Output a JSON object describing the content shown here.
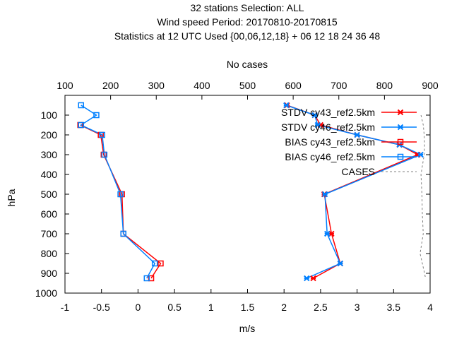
{
  "chart_data": {
    "type": "line",
    "title_lines": [
      "32 stations Selection: ALL",
      "Wind speed  Period: 20170810-20170815",
      "Statistics at 12 UTC  Used {00,06,12,18} + 06 12 18 24 36 48"
    ],
    "xlabel": "m/s",
    "ylabel": "hPa",
    "x2label": "No cases",
    "xlim": [
      -1,
      4
    ],
    "ylim": [
      1000,
      0
    ],
    "x2lim": [
      100,
      900
    ],
    "xticks": [
      "-1",
      "-0.5",
      "0",
      "0.5",
      "1",
      "1.5",
      "2",
      "2.5",
      "3",
      "3.5",
      "4"
    ],
    "yticks": [
      "100",
      "200",
      "300",
      "400",
      "500",
      "600",
      "700",
      "800",
      "900",
      "1000"
    ],
    "x2ticks": [
      "100",
      "200",
      "300",
      "400",
      "500",
      "600",
      "700",
      "800",
      "900"
    ],
    "grid": false,
    "legend_position": "top-right",
    "series": [
      {
        "name": "STDV cy43_ref2.5km",
        "color": "#ff0000",
        "marker": "x",
        "points": [
          [
            2.04,
            50
          ],
          [
            2.42,
            100
          ],
          [
            2.5,
            150
          ],
          [
            3.0,
            200
          ],
          [
            3.58,
            250
          ],
          [
            3.83,
            300
          ],
          [
            2.55,
            500
          ],
          [
            2.65,
            700
          ],
          [
            2.77,
            850
          ],
          [
            2.4,
            925
          ]
        ]
      },
      {
        "name": "STDV cy46_ref2.5km",
        "color": "#0080ff",
        "marker": "x",
        "points": [
          [
            2.03,
            50
          ],
          [
            2.42,
            100
          ],
          [
            2.46,
            150
          ],
          [
            3.0,
            200
          ],
          [
            3.58,
            250
          ],
          [
            3.87,
            300
          ],
          [
            2.56,
            500
          ],
          [
            2.59,
            700
          ],
          [
            2.77,
            850
          ],
          [
            2.31,
            925
          ]
        ]
      },
      {
        "name": "BIAS cy43_ref2.5km",
        "color": "#ff0000",
        "marker": "square",
        "points": [
          [
            -0.79,
            150
          ],
          [
            -0.51,
            200
          ],
          [
            -0.47,
            300
          ],
          [
            -0.22,
            500
          ],
          [
            -0.2,
            700
          ],
          [
            0.31,
            850
          ],
          [
            0.18,
            925
          ]
        ]
      },
      {
        "name": "BIAS cy46_ref2.5km",
        "color": "#0080ff",
        "marker": "square",
        "points": [
          [
            -0.78,
            50
          ],
          [
            -0.57,
            100
          ],
          [
            -0.78,
            150
          ],
          [
            -0.49,
            200
          ],
          [
            -0.46,
            300
          ],
          [
            -0.24,
            500
          ],
          [
            -0.2,
            700
          ],
          [
            0.23,
            850
          ],
          [
            0.12,
            925
          ]
        ]
      },
      {
        "name": "CASES",
        "color": "#808080",
        "dash": true,
        "axis": "x2",
        "points": [
          [
            880,
            100
          ],
          [
            885,
            150
          ],
          [
            887,
            200
          ],
          [
            888,
            250
          ],
          [
            887,
            300
          ],
          [
            880,
            400
          ],
          [
            882,
            500
          ],
          [
            883,
            600
          ],
          [
            885,
            700
          ],
          [
            878,
            800
          ],
          [
            883,
            850
          ],
          [
            888,
            900
          ],
          [
            890,
            925
          ]
        ]
      }
    ]
  }
}
